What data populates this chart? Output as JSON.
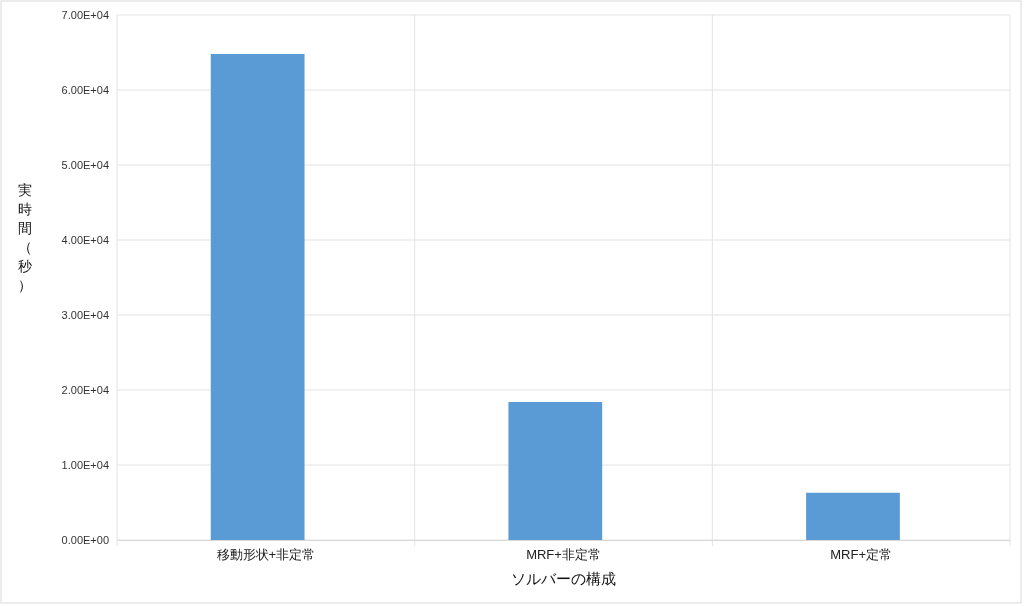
{
  "chart_data": {
    "type": "bar",
    "xlabel": "ソルバーの構成",
    "ylabel": "実時間（秒）",
    "categories": [
      "移動形状+非定常",
      "MRF+非定常",
      "MRF+定常"
    ],
    "values": [
      64800,
      18400,
      6300
    ],
    "color": "#5b9bd5",
    "ylim": [
      0,
      70000
    ],
    "yticks": [
      {
        "value": 0,
        "label": "0.00E+00"
      },
      {
        "value": 10000,
        "label": "1.00E+04"
      },
      {
        "value": 20000,
        "label": "2.00E+04"
      },
      {
        "value": 30000,
        "label": "3.00E+04"
      },
      {
        "value": 40000,
        "label": "4.00E+04"
      },
      {
        "value": 50000,
        "label": "5.00E+04"
      },
      {
        "value": 60000,
        "label": "6.00E+04"
      },
      {
        "value": 70000,
        "label": "7.00E+04"
      }
    ],
    "grid": true
  }
}
